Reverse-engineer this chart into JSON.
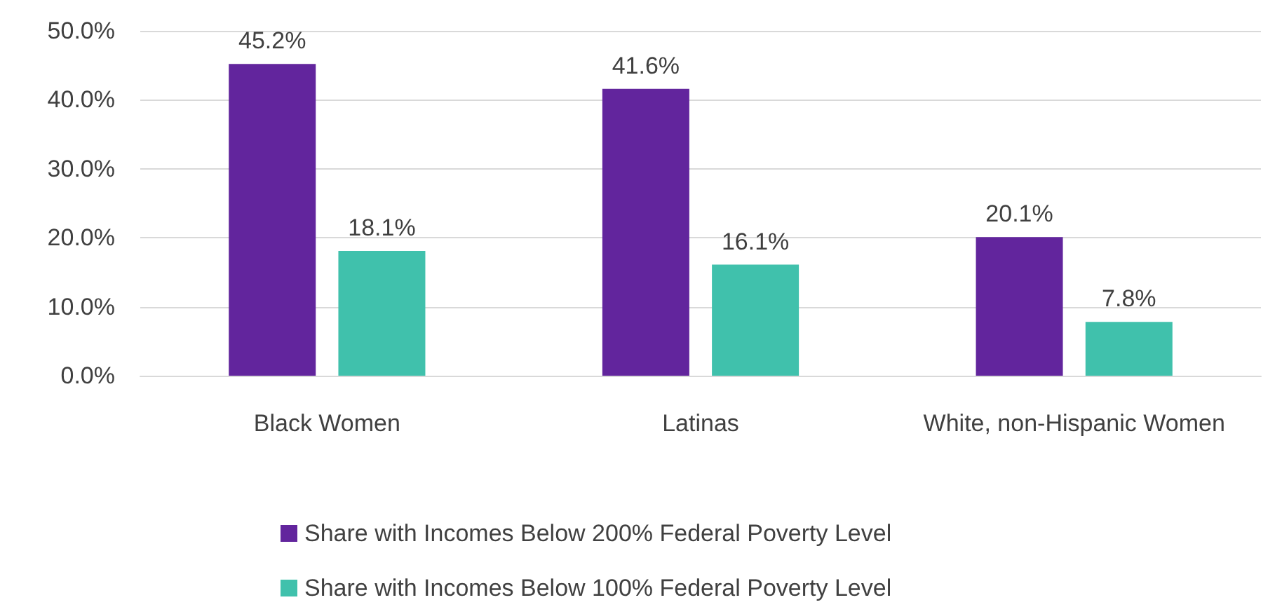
{
  "chart_data": {
    "type": "bar",
    "categories": [
      "Black Women",
      "Latinas",
      "White, non-Hispanic Women"
    ],
    "series": [
      {
        "name": "Share with Incomes Below 200% Federal Poverty Level",
        "color": "#62259d",
        "values": [
          45.2,
          41.6,
          20.1
        ],
        "value_labels": [
          "45.2%",
          "41.6%",
          "20.1%"
        ]
      },
      {
        "name": "Share with Incomes Below 100% Federal Poverty Level",
        "color": "#40c1ac",
        "values": [
          18.1,
          16.1,
          7.8
        ],
        "value_labels": [
          "18.1%",
          "16.1%",
          "7.8%"
        ]
      }
    ],
    "ylim": [
      0,
      50
    ],
    "yticks": [
      {
        "value": 0,
        "label": "0.0%"
      },
      {
        "value": 10,
        "label": "10.0%"
      },
      {
        "value": 20,
        "label": "20.0%"
      },
      {
        "value": 30,
        "label": "30.0%"
      },
      {
        "value": 40,
        "label": "40.0%"
      },
      {
        "value": 50,
        "label": "50.0%"
      }
    ],
    "grid": "y",
    "legend": "bottom"
  }
}
